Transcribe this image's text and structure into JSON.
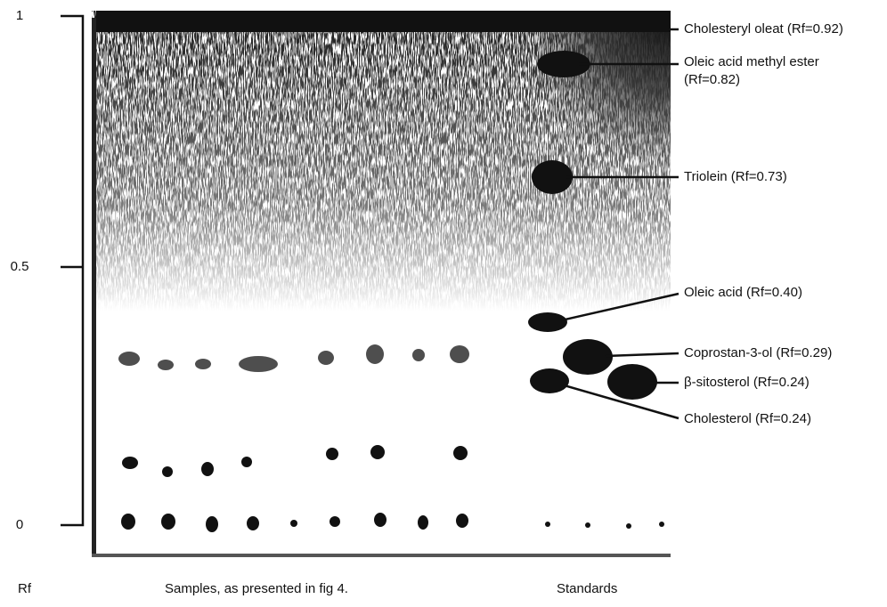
{
  "scale": {
    "ticks": [
      "1",
      "0.5",
      "0"
    ],
    "label": "Rf"
  },
  "annotations": [
    {
      "lines": [
        "Cholesteryl oleat (Rf=0.92)"
      ]
    },
    {
      "lines": [
        "Oleic acid methyl ester",
        "(Rf=0.82)"
      ]
    },
    {
      "lines": [
        "Triolein (Rf=0.73)"
      ]
    },
    {
      "lines": [
        "Oleic acid (Rf=0.40)"
      ]
    },
    {
      "lines": [
        "Coprostan-3-ol (Rf=0.29)"
      ]
    },
    {
      "lines": [
        "β-sitosterol (Rf=0.24)"
      ]
    },
    {
      "lines": [
        "Cholesterol (Rf=0.24)"
      ]
    }
  ],
  "footer": {
    "samples": "Samples, as presented in fig 4.",
    "standards": "Standards"
  }
}
